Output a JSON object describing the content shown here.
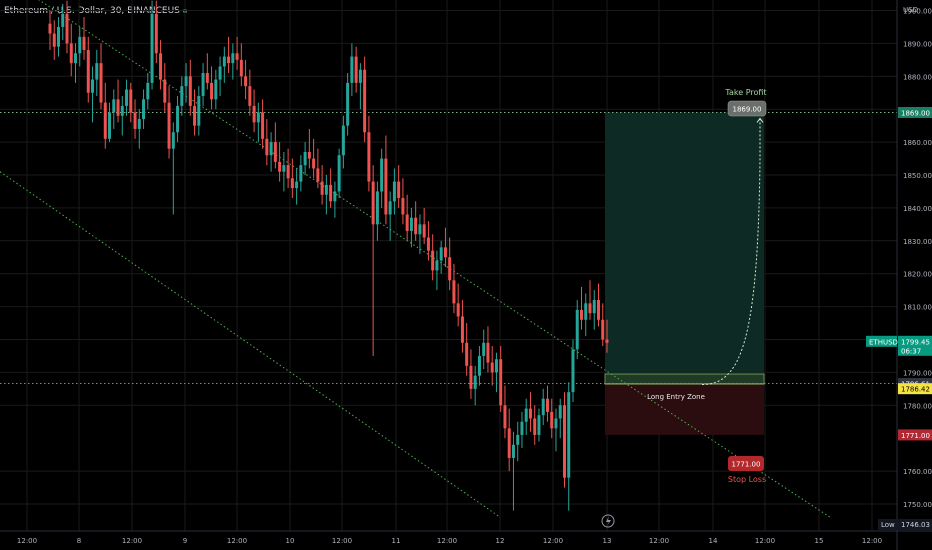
{
  "header": {
    "title": "Ethereum / U.S. Dollar, 30, BINANCEUS"
  },
  "colors": {
    "background": "#000000",
    "up": "#26a69a",
    "down": "#ef5350",
    "trendline": "#4caf50",
    "grid": "#1a1a1a",
    "axis_text": "#b2b5be",
    "profit_zone": "#0d2b24",
    "loss_zone": "#2b0c0f",
    "take_profit_label_bg": "#6b6f6b",
    "stop_loss_label_bg": "#b2282b",
    "take_profit_text": "#a5d6a7",
    "stop_loss_text": "#ef5350",
    "price_label_ethusd": "#089981",
    "price_label_1869": "#1b7f63",
    "price_label_1786": "#31363f",
    "price_label_1786_42": "#f5e342",
    "price_label_1771": "#b22833"
  },
  "price_axis": {
    "currency": "USD",
    "ticks": [
      "1900.00",
      "1890.00",
      "1880.00",
      "1870.00",
      "1860.00",
      "1850.00",
      "1840.00",
      "1830.00",
      "1820.00",
      "1810.00",
      "1800.00",
      "1790.00",
      "1780.00",
      "1760.00",
      "1750.00"
    ]
  },
  "time_axis": {
    "ticks": [
      "12:00",
      "8",
      "12:00",
      "9",
      "12:00",
      "10",
      "12:00",
      "11",
      "12:00",
      "12",
      "12:00",
      "13",
      "12:00",
      "14",
      "12:00",
      "15",
      "12:00"
    ]
  },
  "labels": {
    "take_profit_title": "Take Profit",
    "take_profit_value": "1869.00",
    "stop_loss_title": "Stop Loss",
    "stop_loss_value": "1771.00",
    "entry_zone": "Long Entry Zone",
    "axis_1869": "1869.00",
    "axis_symbol": "ETHUSD",
    "axis_last_price": "1799.45",
    "axis_countdown": "06:37",
    "axis_1786_61": "1786.61",
    "axis_1786_42": "1786.42",
    "axis_1771": "1771.00",
    "low_label": "Low",
    "low_value": "1746.03"
  },
  "chart_data": {
    "type": "candlestick",
    "symbol": "ETHUSD",
    "interval": "30",
    "ylim": [
      1746,
      1904
    ],
    "last_price": 1799.45,
    "session_low": 1746.03,
    "trade_setup": {
      "take_profit": 1869.0,
      "entry_zone": [
        1786.42,
        1789.5
      ],
      "entry_reference": 1786.61,
      "stop_loss": 1771.0
    },
    "horizontal_levels": [
      1869.0,
      1786.61
    ],
    "trend_channel": {
      "upper": [
        [
          15,
          1908
        ],
        [
          780,
          1746
        ]
      ],
      "lower": [
        [
          0,
          1851
        ],
        [
          500,
          1746
        ]
      ]
    },
    "ohlc": [
      [
        1896,
        1900,
        1888,
        1893
      ],
      [
        1893,
        1897,
        1885,
        1889
      ],
      [
        1889,
        1898,
        1886,
        1895
      ],
      [
        1895,
        1902,
        1891,
        1899
      ],
      [
        1899,
        1903,
        1887,
        1890
      ],
      [
        1890,
        1896,
        1880,
        1884
      ],
      [
        1884,
        1890,
        1878,
        1887
      ],
      [
        1887,
        1895,
        1883,
        1892
      ],
      [
        1892,
        1898,
        1885,
        1888
      ],
      [
        1888,
        1892,
        1872,
        1875
      ],
      [
        1875,
        1883,
        1866,
        1879
      ],
      [
        1879,
        1888,
        1874,
        1884
      ],
      [
        1884,
        1890,
        1870,
        1872
      ],
      [
        1872,
        1878,
        1858,
        1861
      ],
      [
        1861,
        1872,
        1860,
        1869
      ],
      [
        1869,
        1876,
        1864,
        1873
      ],
      [
        1873,
        1879,
        1866,
        1868
      ],
      [
        1868,
        1874,
        1862,
        1871
      ],
      [
        1871,
        1879,
        1868,
        1876
      ],
      [
        1876,
        1878,
        1866,
        1869
      ],
      [
        1869,
        1873,
        1861,
        1864
      ],
      [
        1864,
        1870,
        1858,
        1867
      ],
      [
        1867,
        1876,
        1864,
        1873
      ],
      [
        1873,
        1881,
        1870,
        1878
      ],
      [
        1878,
        1903,
        1876,
        1899
      ],
      [
        1899,
        1903,
        1884,
        1887
      ],
      [
        1887,
        1891,
        1876,
        1879
      ],
      [
        1879,
        1884,
        1869,
        1872
      ],
      [
        1872,
        1877,
        1855,
        1858
      ],
      [
        1858,
        1866,
        1838,
        1863
      ],
      [
        1863,
        1874,
        1860,
        1871
      ],
      [
        1871,
        1880,
        1868,
        1877
      ],
      [
        1877,
        1884,
        1872,
        1880
      ],
      [
        1880,
        1885,
        1868,
        1871
      ],
      [
        1871,
        1876,
        1862,
        1865
      ],
      [
        1865,
        1877,
        1862,
        1874
      ],
      [
        1874,
        1884,
        1871,
        1881
      ],
      [
        1881,
        1887,
        1876,
        1878
      ],
      [
        1878,
        1883,
        1870,
        1873
      ],
      [
        1873,
        1882,
        1870,
        1879
      ],
      [
        1879,
        1886,
        1874,
        1883
      ],
      [
        1883,
        1889,
        1878,
        1886
      ],
      [
        1886,
        1892,
        1881,
        1884
      ],
      [
        1884,
        1890,
        1879,
        1887
      ],
      [
        1887,
        1892,
        1882,
        1885
      ],
      [
        1885,
        1890,
        1877,
        1880
      ],
      [
        1880,
        1885,
        1873,
        1877
      ],
      [
        1877,
        1882,
        1868,
        1871
      ],
      [
        1871,
        1876,
        1863,
        1866
      ],
      [
        1866,
        1872,
        1860,
        1869
      ],
      [
        1869,
        1873,
        1858,
        1861
      ],
      [
        1861,
        1867,
        1853,
        1856
      ],
      [
        1856,
        1863,
        1851,
        1860
      ],
      [
        1860,
        1866,
        1852,
        1854
      ],
      [
        1854,
        1860,
        1848,
        1851
      ],
      [
        1851,
        1857,
        1845,
        1853
      ],
      [
        1853,
        1858,
        1846,
        1849
      ],
      [
        1849,
        1855,
        1843,
        1846
      ],
      [
        1846,
        1852,
        1841,
        1848
      ],
      [
        1848,
        1856,
        1845,
        1853
      ],
      [
        1853,
        1860,
        1850,
        1857
      ],
      [
        1857,
        1864,
        1852,
        1855
      ],
      [
        1855,
        1861,
        1849,
        1852
      ],
      [
        1852,
        1858,
        1846,
        1848
      ],
      [
        1848,
        1853,
        1841,
        1844
      ],
      [
        1844,
        1850,
        1838,
        1847
      ],
      [
        1847,
        1852,
        1840,
        1842
      ],
      [
        1842,
        1848,
        1837,
        1845
      ],
      [
        1845,
        1858,
        1843,
        1856
      ],
      [
        1856,
        1868,
        1852,
        1865
      ],
      [
        1865,
        1881,
        1862,
        1878
      ],
      [
        1878,
        1890,
        1874,
        1886
      ],
      [
        1886,
        1889,
        1875,
        1878
      ],
      [
        1878,
        1884,
        1870,
        1882
      ],
      [
        1882,
        1886,
        1860,
        1863
      ],
      [
        1863,
        1868,
        1845,
        1848
      ],
      [
        1848,
        1853,
        1795,
        1835
      ],
      [
        1835,
        1848,
        1830,
        1845
      ],
      [
        1845,
        1858,
        1840,
        1855
      ],
      [
        1855,
        1862,
        1835,
        1838
      ],
      [
        1838,
        1845,
        1830,
        1842
      ],
      [
        1842,
        1852,
        1838,
        1848
      ],
      [
        1848,
        1853,
        1840,
        1843
      ],
      [
        1843,
        1849,
        1835,
        1838
      ],
      [
        1838,
        1844,
        1830,
        1833
      ],
      [
        1833,
        1840,
        1828,
        1837
      ],
      [
        1837,
        1842,
        1830,
        1832
      ],
      [
        1832,
        1838,
        1826,
        1835
      ],
      [
        1835,
        1840,
        1829,
        1831
      ],
      [
        1831,
        1836,
        1824,
        1827
      ],
      [
        1827,
        1832,
        1818,
        1821
      ],
      [
        1821,
        1827,
        1815,
        1824
      ],
      [
        1824,
        1830,
        1820,
        1828
      ],
      [
        1828,
        1834,
        1822,
        1825
      ],
      [
        1825,
        1831,
        1815,
        1818
      ],
      [
        1818,
        1823,
        1808,
        1811
      ],
      [
        1811,
        1817,
        1804,
        1807
      ],
      [
        1807,
        1812,
        1796,
        1799
      ],
      [
        1799,
        1805,
        1789,
        1792
      ],
      [
        1792,
        1797,
        1782,
        1785
      ],
      [
        1785,
        1792,
        1780,
        1789
      ],
      [
        1789,
        1798,
        1786,
        1795
      ],
      [
        1795,
        1803,
        1791,
        1799
      ],
      [
        1799,
        1804,
        1790,
        1793
      ],
      [
        1793,
        1798,
        1786,
        1790
      ],
      [
        1790,
        1796,
        1784,
        1794
      ],
      [
        1794,
        1798,
        1778,
        1780
      ],
      [
        1780,
        1786,
        1770,
        1773
      ],
      [
        1773,
        1779,
        1760,
        1764
      ],
      [
        1764,
        1772,
        1748,
        1768
      ],
      [
        1768,
        1775,
        1763,
        1771
      ],
      [
        1771,
        1778,
        1767,
        1775
      ],
      [
        1775,
        1782,
        1771,
        1779
      ],
      [
        1779,
        1784,
        1772,
        1776
      ],
      [
        1776,
        1780,
        1768,
        1771
      ],
      [
        1771,
        1779,
        1769,
        1777
      ],
      [
        1777,
        1785,
        1774,
        1782
      ],
      [
        1782,
        1786,
        1775,
        1778
      ],
      [
        1778,
        1782,
        1770,
        1773
      ],
      [
        1773,
        1779,
        1766,
        1776
      ],
      [
        1776,
        1782,
        1770,
        1780
      ],
      [
        1780,
        1784,
        1755,
        1758
      ],
      [
        1758,
        1787,
        1748,
        1784
      ],
      [
        1784,
        1800,
        1781,
        1797
      ],
      [
        1797,
        1812,
        1794,
        1809
      ],
      [
        1809,
        1816,
        1803,
        1806
      ],
      [
        1806,
        1814,
        1801,
        1811
      ],
      [
        1811,
        1818,
        1806,
        1808
      ],
      [
        1808,
        1815,
        1803,
        1812
      ],
      [
        1812,
        1817,
        1804,
        1806
      ],
      [
        1806,
        1811,
        1798,
        1800
      ],
      [
        1800,
        1806,
        1796,
        1799
      ]
    ]
  }
}
